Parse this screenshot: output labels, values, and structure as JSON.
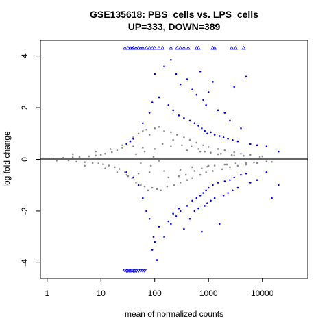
{
  "chart_data": {
    "type": "scatter",
    "title": "GSE135618: PBS_cells vs. LPS_cells",
    "subtitle": "UP=333, DOWN=389",
    "xlabel": "mean of normalized counts",
    "ylabel": "log fold change",
    "x_scale": "log10",
    "xlim": [
      0.75,
      70000
    ],
    "ylim": [
      -4.6,
      4.6
    ],
    "x_ticks": [
      1,
      10,
      100,
      1000,
      10000
    ],
    "x_tick_labels": [
      "1",
      "10",
      "100",
      "1000",
      "10000"
    ],
    "y_ticks": [
      -4,
      -2,
      0,
      2,
      4
    ],
    "y_tick_labels": [
      "-4",
      "-2",
      "0",
      "2",
      "4"
    ],
    "reference_line": {
      "y": 0,
      "color": "#666666"
    },
    "colors": {
      "not_significant": "#8a8a8a",
      "significant": "#0000ee"
    },
    "grid": false,
    "legend": "none",
    "series": [
      {
        "role": "not_significant",
        "marker": "dot",
        "points": [
          [
            1.2,
            0.03
          ],
          [
            1.5,
            -0.05
          ],
          [
            2,
            0.06
          ],
          [
            2.5,
            -0.04
          ],
          [
            3,
            0.08
          ],
          [
            3.5,
            -0.09
          ],
          [
            4,
            0.1
          ],
          [
            5,
            -0.11
          ],
          [
            6,
            0.12
          ],
          [
            7,
            -0.14
          ],
          [
            8,
            0.15
          ],
          [
            9,
            -0.16
          ],
          [
            10,
            0.18
          ],
          [
            11,
            -0.19
          ],
          [
            12,
            0.22
          ],
          [
            14,
            -0.24
          ],
          [
            16,
            0.28
          ],
          [
            18,
            -0.3
          ],
          [
            20,
            0.35
          ],
          [
            22,
            -0.37
          ],
          [
            25,
            0.45
          ],
          [
            28,
            -0.5
          ],
          [
            30,
            0.6
          ],
          [
            32,
            -0.65
          ],
          [
            35,
            0.7
          ],
          [
            38,
            -0.72
          ],
          [
            40,
            0.85
          ],
          [
            45,
            -0.9
          ],
          [
            50,
            1.0
          ],
          [
            55,
            -1.0
          ],
          [
            60,
            1.1
          ],
          [
            65,
            -1.05
          ],
          [
            70,
            1.15
          ],
          [
            75,
            -1.2
          ],
          [
            80,
            0.95
          ],
          [
            90,
            -1.1
          ],
          [
            100,
            1.2
          ],
          [
            110,
            -1.15
          ],
          [
            120,
            1.25
          ],
          [
            130,
            -1.2
          ],
          [
            150,
            1.1
          ],
          [
            170,
            -1.05
          ],
          [
            200,
            1.05
          ],
          [
            230,
            -1.0
          ],
          [
            260,
            0.95
          ],
          [
            300,
            -0.9
          ],
          [
            350,
            0.85
          ],
          [
            400,
            -0.8
          ],
          [
            450,
            0.75
          ],
          [
            500,
            -0.72
          ],
          [
            600,
            0.65
          ],
          [
            700,
            -0.6
          ],
          [
            800,
            0.55
          ],
          [
            900,
            -0.5
          ],
          [
            1000,
            0.48
          ],
          [
            1200,
            -0.45
          ],
          [
            1500,
            0.4
          ],
          [
            1800,
            -0.38
          ],
          [
            2000,
            0.35
          ],
          [
            2500,
            -0.3
          ],
          [
            3000,
            0.28
          ],
          [
            3500,
            -0.25
          ],
          [
            4000,
            0.22
          ],
          [
            5000,
            -0.2
          ],
          [
            6000,
            0.18
          ],
          [
            8000,
            -0.15
          ],
          [
            10000,
            0.12
          ],
          [
            15000,
            -0.1
          ],
          [
            3,
            0.2
          ],
          [
            5,
            -0.25
          ],
          [
            8,
            0.3
          ],
          [
            12,
            -0.35
          ],
          [
            15,
            0.4
          ],
          [
            20,
            -0.5
          ],
          [
            25,
            0.55
          ],
          [
            30,
            -0.6
          ],
          [
            40,
            0.5
          ],
          [
            50,
            -0.55
          ],
          [
            60,
            0.45
          ],
          [
            80,
            -0.5
          ],
          [
            100,
            0.4
          ],
          [
            150,
            -0.45
          ],
          [
            200,
            0.5
          ],
          [
            300,
            -0.4
          ],
          [
            400,
            0.35
          ],
          [
            500,
            -0.3
          ],
          [
            700,
            0.3
          ],
          [
            1000,
            -0.25
          ],
          [
            1500,
            0.2
          ],
          [
            2000,
            -0.2
          ],
          [
            3000,
            0.15
          ],
          [
            5000,
            -0.15
          ],
          [
            45,
            0.2
          ],
          [
            55,
            -0.15
          ],
          [
            65,
            0.3
          ],
          [
            85,
            -0.25
          ],
          [
            95,
            0.1
          ],
          [
            120,
            -0.05
          ],
          [
            140,
            0.6
          ],
          [
            180,
            -0.7
          ],
          [
            220,
            0.75
          ],
          [
            280,
            -0.65
          ],
          [
            320,
            0.55
          ],
          [
            380,
            -0.6
          ],
          [
            480,
            0.5
          ],
          [
            550,
            -0.45
          ],
          [
            650,
            0.4
          ],
          [
            750,
            -0.35
          ],
          [
            850,
            0.3
          ],
          [
            950,
            -0.28
          ],
          [
            1100,
            0.26
          ],
          [
            1300,
            -0.24
          ],
          [
            1700,
            0.22
          ],
          [
            2200,
            -0.2
          ],
          [
            2700,
            0.18
          ],
          [
            3200,
            -0.16
          ],
          [
            4500,
            0.14
          ],
          [
            7000,
            -0.12
          ],
          [
            9000,
            0.1
          ],
          [
            12000,
            -0.08
          ]
        ]
      },
      {
        "role": "significant",
        "marker": "dot",
        "points": [
          [
            100,
            3.3
          ],
          [
            150,
            3.6
          ],
          [
            200,
            3.85
          ],
          [
            250,
            3.3
          ],
          [
            300,
            2.9
          ],
          [
            400,
            3.1
          ],
          [
            500,
            2.7
          ],
          [
            600,
            2.5
          ],
          [
            700,
            3.4
          ],
          [
            800,
            2.3
          ],
          [
            900,
            2.1
          ],
          [
            1000,
            2.6
          ],
          [
            1200,
            3.0
          ],
          [
            1500,
            1.9
          ],
          [
            2000,
            1.8
          ],
          [
            2500,
            1.5
          ],
          [
            3000,
            2.8
          ],
          [
            4000,
            1.2
          ],
          [
            5000,
            3.2
          ],
          [
            120,
            2.4
          ],
          [
            180,
            2.1
          ],
          [
            220,
            1.9
          ],
          [
            280,
            1.7
          ],
          [
            350,
            1.6
          ],
          [
            450,
            1.5
          ],
          [
            550,
            1.4
          ],
          [
            650,
            1.3
          ],
          [
            750,
            1.2
          ],
          [
            850,
            1.1
          ],
          [
            950,
            1.0
          ],
          [
            1100,
            1.05
          ],
          [
            1300,
            0.95
          ],
          [
            1600,
            0.9
          ],
          [
            1900,
            0.85
          ],
          [
            2300,
            0.8
          ],
          [
            2800,
            0.75
          ],
          [
            3500,
            0.7
          ],
          [
            6000,
            0.6
          ],
          [
            8000,
            0.55
          ],
          [
            12000,
            0.5
          ],
          [
            20000,
            0.3
          ],
          [
            30,
            0.6
          ],
          [
            35,
            0.7
          ],
          [
            40,
            0.8
          ],
          [
            60,
            1.4
          ],
          [
            80,
            1.8
          ],
          [
            90,
            2.2
          ],
          [
            100,
            -3.2
          ],
          [
            150,
            -3.0
          ],
          [
            200,
            -2.5
          ],
          [
            250,
            -2.2
          ],
          [
            300,
            -2.0
          ],
          [
            400,
            -1.8
          ],
          [
            500,
            -1.6
          ],
          [
            600,
            -1.5
          ],
          [
            700,
            -1.4
          ],
          [
            800,
            -1.3
          ],
          [
            900,
            -1.2
          ],
          [
            1000,
            -1.1
          ],
          [
            1200,
            -1.0
          ],
          [
            1500,
            -0.9
          ],
          [
            2000,
            -0.85
          ],
          [
            2500,
            -0.8
          ],
          [
            3000,
            -0.7
          ],
          [
            4000,
            -0.6
          ],
          [
            5000,
            -0.55
          ],
          [
            120,
            -2.6
          ],
          [
            180,
            -2.4
          ],
          [
            220,
            -2.1
          ],
          [
            280,
            -1.9
          ],
          [
            350,
            -2.7
          ],
          [
            450,
            -2.3
          ],
          [
            550,
            -2.0
          ],
          [
            650,
            -1.9
          ],
          [
            750,
            -2.8
          ],
          [
            850,
            -1.8
          ],
          [
            950,
            -1.7
          ],
          [
            1100,
            -1.6
          ],
          [
            1300,
            -1.5
          ],
          [
            1600,
            -2.5
          ],
          [
            1900,
            -1.4
          ],
          [
            2300,
            -1.3
          ],
          [
            2800,
            -1.2
          ],
          [
            3500,
            -1.1
          ],
          [
            6000,
            -0.9
          ],
          [
            8000,
            -0.8
          ],
          [
            12000,
            -0.5
          ],
          [
            15000,
            -1.5
          ],
          [
            20000,
            -1.0
          ],
          [
            30,
            -0.5
          ],
          [
            40,
            -0.7
          ],
          [
            50,
            -1.0
          ],
          [
            60,
            -1.5
          ],
          [
            70,
            -2.0
          ],
          [
            80,
            -2.3
          ],
          [
            90,
            -3.5
          ],
          [
            110,
            -3.9
          ],
          [
            95,
            -3.0
          ]
        ]
      },
      {
        "role": "significant_clipped_up",
        "marker": "triangle-up",
        "points": [
          [
            28,
            4.3
          ],
          [
            32,
            4.3
          ],
          [
            35,
            4.3
          ],
          [
            38,
            4.3
          ],
          [
            40,
            4.3
          ],
          [
            45,
            4.3
          ],
          [
            50,
            4.3
          ],
          [
            55,
            4.3
          ],
          [
            60,
            4.3
          ],
          [
            70,
            4.3
          ],
          [
            80,
            4.3
          ],
          [
            90,
            4.3
          ],
          [
            100,
            4.3
          ],
          [
            120,
            4.3
          ],
          [
            140,
            4.3
          ],
          [
            200,
            4.3
          ],
          [
            260,
            4.3
          ],
          [
            300,
            4.3
          ],
          [
            350,
            4.3
          ],
          [
            420,
            4.3
          ],
          [
            600,
            4.3
          ],
          [
            650,
            4.3
          ],
          [
            1200,
            4.3
          ],
          [
            1300,
            4.3
          ],
          [
            2700,
            4.3
          ],
          [
            3200,
            4.3
          ],
          [
            4500,
            4.3
          ]
        ]
      },
      {
        "role": "significant_clipped_down",
        "marker": "triangle-down",
        "points": [
          [
            28,
            -4.3
          ],
          [
            30,
            -4.3
          ],
          [
            32,
            -4.3
          ],
          [
            34,
            -4.3
          ],
          [
            36,
            -4.3
          ],
          [
            38,
            -4.3
          ],
          [
            40,
            -4.3
          ],
          [
            43,
            -4.3
          ],
          [
            46,
            -4.3
          ],
          [
            50,
            -4.3
          ],
          [
            55,
            -4.3
          ],
          [
            60,
            -4.3
          ],
          [
            65,
            -4.3
          ]
        ]
      }
    ]
  }
}
